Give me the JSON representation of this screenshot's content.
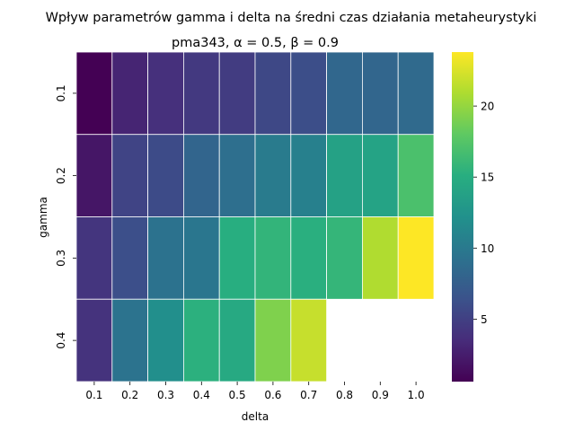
{
  "chart_data": {
    "type": "heatmap",
    "title": "Wpływ parametrów gamma i delta na średni czas działania metaheurystyki",
    "subtitle": "pma343, α = 0.5, β = 0.9",
    "xlabel": "delta",
    "ylabel": "gamma",
    "x_categories": [
      "0.1",
      "0.2",
      "0.3",
      "0.4",
      "0.5",
      "0.6",
      "0.7",
      "0.8",
      "0.9",
      "1.0"
    ],
    "y_categories": [
      "0.1",
      "0.2",
      "0.3",
      "0.4"
    ],
    "values": [
      [
        0.6,
        3.0,
        3.8,
        4.5,
        4.7,
        5.6,
        6.1,
        8.3,
        8.2,
        8.6
      ],
      [
        2.0,
        5.3,
        5.9,
        8.1,
        9.0,
        10.1,
        10.6,
        13.8,
        14.0,
        17.0
      ],
      [
        4.2,
        6.2,
        9.3,
        9.7,
        15.1,
        15.7,
        15.2,
        15.8,
        21.0,
        23.8
      ],
      [
        4.0,
        9.4,
        12.0,
        15.3,
        14.6,
        19.2,
        21.8,
        null,
        null,
        null
      ]
    ],
    "colorbar": {
      "min": 0.6,
      "max": 23.8,
      "ticks": [
        5,
        10,
        15,
        20
      ],
      "colormap": "viridis"
    },
    "grid_lines_color": "#ffffff"
  }
}
